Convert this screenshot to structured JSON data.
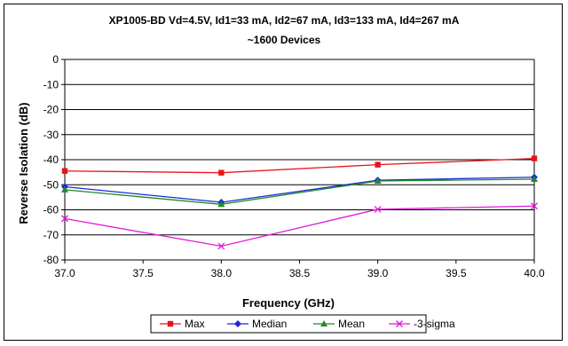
{
  "chart_data": {
    "type": "line",
    "title": "XP1005-BD Vd=4.5V, Id1=33 mA, Id2=67 mA, Id3=133 mA, Id4=267 mA",
    "subtitle": "~1600 Devices",
    "xlabel": "Frequency (GHz)",
    "ylabel": "Reverse Isolation (dB)",
    "xlim": [
      37.0,
      40.0
    ],
    "ylim": [
      -80,
      0
    ],
    "x_ticks": [
      "37.0",
      "37.5",
      "38.0",
      "38.5",
      "39.0",
      "39.5",
      "40.0"
    ],
    "y_ticks": [
      "0",
      "-10",
      "-20",
      "-30",
      "-40",
      "-50",
      "-60",
      "-70",
      "-80"
    ],
    "grid": "horizontal",
    "legend_position": "bottom",
    "x": [
      37.0,
      38.0,
      39.0,
      40.0
    ],
    "series": [
      {
        "name": "Max",
        "color": "#e8141b",
        "marker": "square",
        "values": [
          -44.5,
          -45.2,
          -42.0,
          -39.5
        ]
      },
      {
        "name": "Median",
        "color": "#1a2bd4",
        "marker": "diamond",
        "values": [
          -50.8,
          -57.0,
          -48.2,
          -47.0
        ]
      },
      {
        "name": "Mean",
        "color": "#1f8a2a",
        "marker": "triangle",
        "values": [
          -52.0,
          -57.8,
          -48.5,
          -47.8
        ]
      },
      {
        "name": "-3-sigma",
        "color": "#e01ad8",
        "marker": "x",
        "values": [
          -63.5,
          -74.5,
          -59.8,
          -58.5
        ]
      }
    ]
  }
}
